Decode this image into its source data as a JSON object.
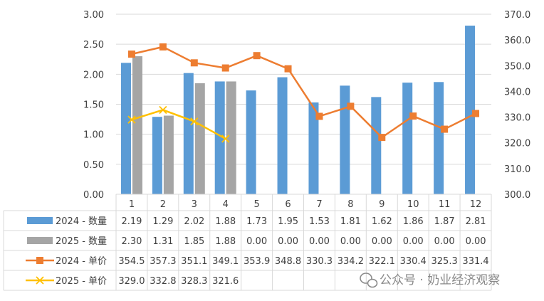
{
  "chart_data": {
    "type": "bar",
    "categories": [
      "1",
      "2",
      "3",
      "4",
      "5",
      "6",
      "7",
      "8",
      "9",
      "10",
      "11",
      "12"
    ],
    "y_left": {
      "min": 0,
      "max": 3,
      "step": 0.5,
      "ticks": [
        "0.00",
        "0.50",
        "1.00",
        "1.50",
        "2.00",
        "2.50",
        "3.00"
      ]
    },
    "y_right": {
      "min": 300,
      "max": 370,
      "step": 10,
      "ticks": [
        "300.0",
        "310.0",
        "320.0",
        "330.0",
        "340.0",
        "350.0",
        "360.0",
        "370.0"
      ]
    },
    "grid": true,
    "series": [
      {
        "name": "2024 - 数量",
        "kind": "bar",
        "axis": "left",
        "color": "#5B9BD5",
        "values": [
          2.19,
          1.29,
          2.02,
          1.88,
          1.73,
          1.95,
          1.53,
          1.81,
          1.62,
          1.86,
          1.87,
          2.81
        ],
        "labels": [
          "2.19",
          "1.29",
          "2.02",
          "1.88",
          "1.73",
          "1.95",
          "1.53",
          "1.81",
          "1.62",
          "1.86",
          "1.87",
          "2.81"
        ]
      },
      {
        "name": "2025 - 数量",
        "kind": "bar",
        "axis": "left",
        "color": "#A5A5A5",
        "values": [
          2.3,
          1.31,
          1.85,
          1.88,
          0,
          0,
          0,
          0,
          0,
          0,
          0,
          0
        ],
        "labels": [
          "2.30",
          "1.31",
          "1.85",
          "1.88",
          "0.00",
          "0.00",
          "0.00",
          "0.00",
          "0.00",
          "0.00",
          "0.00",
          "0.00"
        ]
      },
      {
        "name": "2024 - 单价",
        "kind": "line",
        "marker": "square",
        "axis": "right",
        "color": "#ED7D31",
        "values": [
          354.5,
          357.3,
          351.1,
          349.1,
          353.9,
          348.8,
          330.3,
          334.2,
          322.1,
          330.4,
          325.3,
          331.4
        ],
        "labels": [
          "354.5",
          "357.3",
          "351.1",
          "349.1",
          "353.9",
          "348.8",
          "330.3",
          "334.2",
          "322.1",
          "330.4",
          "325.3",
          "331.4"
        ]
      },
      {
        "name": "2025 - 单价",
        "kind": "line",
        "marker": "x",
        "axis": "right",
        "color": "#FFC000",
        "values": [
          329.0,
          332.8,
          328.3,
          321.6,
          null,
          null,
          null,
          null,
          null,
          null,
          null,
          null
        ],
        "labels": [
          "329.0",
          "332.8",
          "328.3",
          "321.6",
          "",
          "",
          "",
          "",
          "",
          "",
          "",
          ""
        ]
      }
    ]
  },
  "watermark": {
    "text": "公众号 · 奶业经济观察",
    "icon": "wechat-icon"
  }
}
